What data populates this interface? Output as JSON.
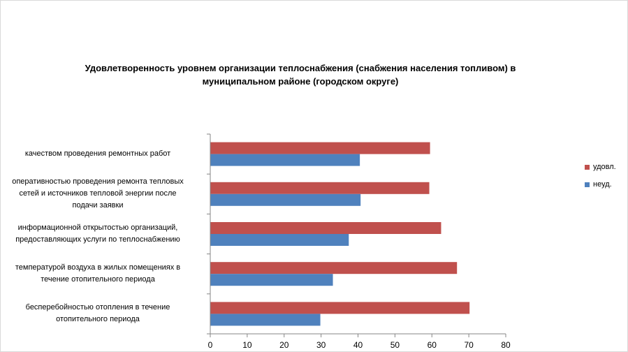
{
  "chart_data": {
    "type": "bar",
    "orientation": "horizontal",
    "title": "Удовлетворенность уровнем организации теплоснабжения (снабжения населения топливом) в муниципальном районе (городском округе)",
    "categories": [
      "качеством проведения ремонтных работ",
      "оперативностью проведения ремонта тепловых сетей и источников тепловой энергии после подачи заявки",
      "информационной открытостью организаций, предоставляющих услуги по теплоснабжению",
      "температурой воздуха в жилых помещениях в течение отопительного периода",
      "бесперебойностью отопления в течение отопительного периода"
    ],
    "category_lines": [
      [
        "качеством проведения ремонтных работ"
      ],
      [
        "оперативностью проведения ремонта тепловых",
        "сетей и источников тепловой энергии после",
        "подачи заявки"
      ],
      [
        "информационной открытостью организаций,",
        "предоставляющих услуги по теплоснабжению"
      ],
      [
        "температурой воздуха в жилых помещениях в",
        "течение отопительного периода"
      ],
      [
        "бесперебойностью отопления в течение",
        "отопительного периода"
      ]
    ],
    "series": [
      {
        "name": "удовл.",
        "color": "#c0504d",
        "values": [
          59.5,
          59.3,
          62.5,
          66.8,
          70.2
        ]
      },
      {
        "name": "неуд.",
        "color": "#4f81bd",
        "values": [
          40.5,
          40.7,
          37.5,
          33.2,
          29.8
        ]
      }
    ],
    "xlim": [
      0,
      80
    ],
    "xticks": [
      0,
      10,
      20,
      30,
      40,
      50,
      60,
      70,
      80
    ],
    "grid": "none",
    "legend_position": "right"
  }
}
